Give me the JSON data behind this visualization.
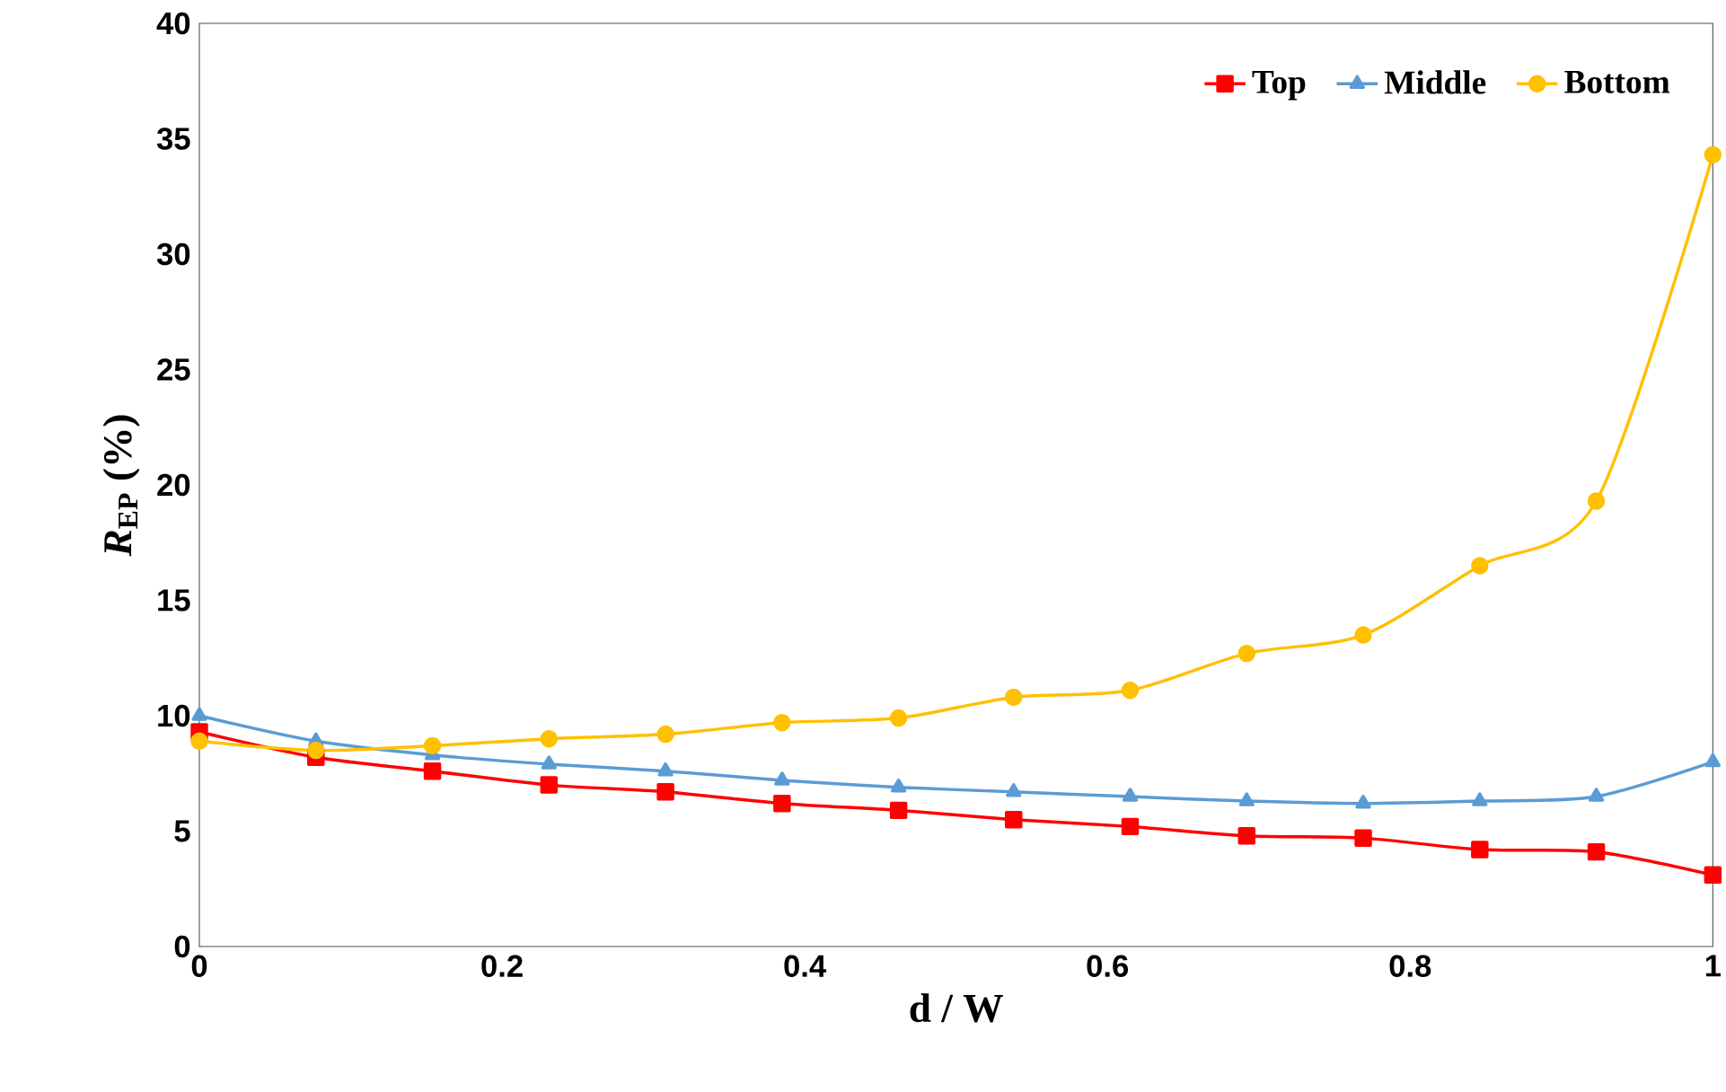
{
  "chart_data": {
    "type": "line",
    "xlabel": "d / W",
    "ylabel": "*R*$_{EP}$ (%)",
    "x": [
      0,
      0.077,
      0.154,
      0.231,
      0.308,
      0.385,
      0.462,
      0.538,
      0.615,
      0.692,
      0.769,
      0.846,
      0.923,
      1
    ],
    "series": [
      {
        "name": "Top",
        "color": "#ff0000",
        "marker": "square",
        "values": [
          9.3,
          8.2,
          7.6,
          7.0,
          6.7,
          6.2,
          5.9,
          5.5,
          5.2,
          4.8,
          4.7,
          4.2,
          4.1,
          3.1
        ]
      },
      {
        "name": "Middle",
        "color": "#5b9bd5",
        "marker": "triangle",
        "values": [
          10.0,
          8.9,
          8.3,
          7.9,
          7.6,
          7.2,
          6.9,
          6.7,
          6.5,
          6.3,
          6.2,
          6.3,
          6.5,
          8.0
        ]
      },
      {
        "name": "Bottom",
        "color": "#ffc000",
        "marker": "circle",
        "values": [
          8.9,
          8.5,
          8.7,
          9.0,
          9.2,
          9.7,
          9.9,
          10.8,
          11.1,
          12.7,
          13.5,
          16.5,
          19.3,
          34.3
        ]
      }
    ],
    "xlim": [
      0,
      1
    ],
    "ylim": [
      0,
      40
    ],
    "xticks": [
      0,
      0.2,
      0.4,
      0.6,
      0.8,
      1
    ],
    "yticks": [
      0,
      5,
      10,
      15,
      20,
      25,
      30,
      35,
      40
    ],
    "legend": "top right",
    "grid": false,
    "line_style": "solid"
  }
}
